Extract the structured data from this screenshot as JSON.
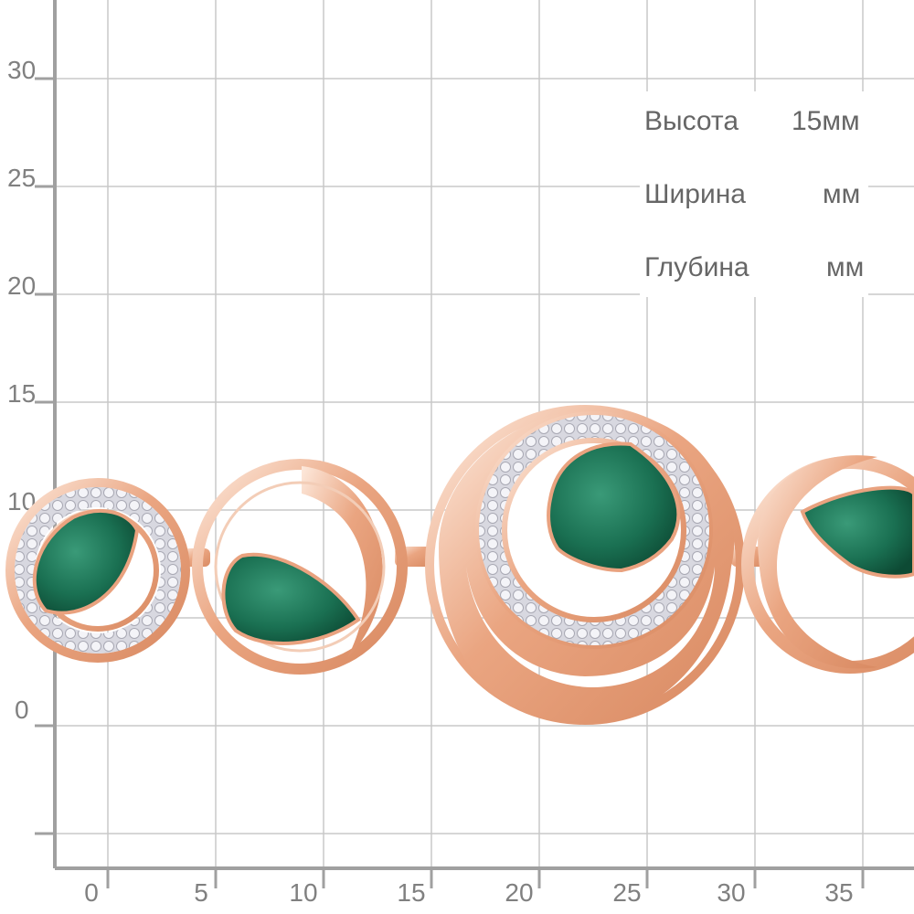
{
  "grid": {
    "y_ticks": [
      "30",
      "25",
      "20",
      "15",
      "10",
      "0"
    ],
    "x_ticks": [
      "0",
      "5",
      "10",
      "15",
      "20",
      "25",
      "30",
      "35"
    ],
    "line_color": "#c8c8c8",
    "axis_color": "#a0a0a0"
  },
  "specs": {
    "height_label": "Высота",
    "height_value": "15мм",
    "width_label": "Ширина",
    "width_value": "мм",
    "depth_label": "Глубина",
    "depth_value": "мм"
  },
  "jewelry": {
    "description": "gold bracelet with green stones",
    "gold_color": "#e9a27f",
    "gold_light": "#fbe3d3",
    "stone_color": "#1f7a5a",
    "stone_dark": "#0f5a40",
    "diamond_color": "#e8e8ee"
  }
}
